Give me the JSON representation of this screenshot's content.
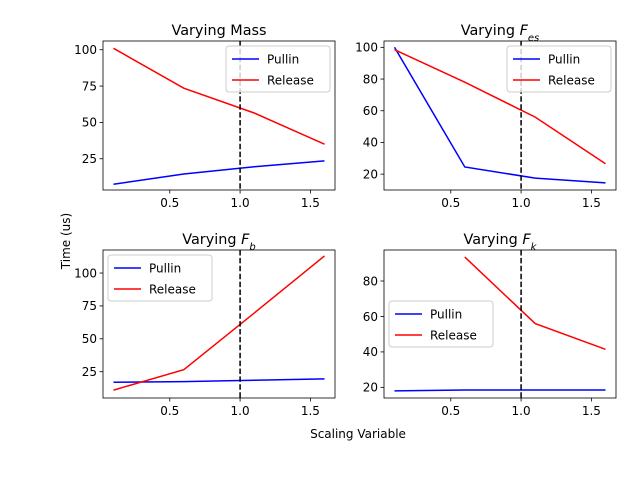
{
  "figure": {
    "xlabel": "Scaling Variable",
    "ylabel": "Time (us)"
  },
  "colors": {
    "pullin": "#0000ff",
    "release": "#ff0000",
    "reference": "#000000"
  },
  "chart_data": [
    {
      "type": "line",
      "title": "Varying Mass",
      "title_parts": [
        {
          "text": "Varying Mass",
          "italic": false
        }
      ],
      "xlim": [
        0.025,
        1.675
      ],
      "ylim": [
        3.5,
        106
      ],
      "xticks": [
        0.5,
        1.0,
        1.5
      ],
      "xtick_labels": [
        "0.5",
        "1.0",
        "1.5"
      ],
      "yticks": [
        25,
        50,
        75,
        100
      ],
      "ytick_labels": [
        "25",
        "50",
        "75",
        "100"
      ],
      "reference_x": 1.0,
      "legend": "top-right",
      "series": [
        {
          "name": "Pullin",
          "color": "#0000ff",
          "x": [
            0.1,
            0.6,
            1.1,
            1.6
          ],
          "y": [
            7.5,
            14.5,
            19.5,
            23.5
          ]
        },
        {
          "name": "Release",
          "color": "#ff0000",
          "x": [
            0.1,
            0.6,
            1.1,
            1.6
          ],
          "y": [
            101,
            73.5,
            56.5,
            35
          ]
        }
      ]
    },
    {
      "type": "line",
      "title": "Varying F_es",
      "title_parts": [
        {
          "text": "Varying ",
          "italic": false
        },
        {
          "text": "F",
          "italic": true
        },
        {
          "text": "es",
          "italic": true,
          "sub": true
        }
      ],
      "xlim": [
        0.025,
        1.675
      ],
      "ylim": [
        10,
        104
      ],
      "xticks": [
        0.5,
        1.0,
        1.5
      ],
      "xtick_labels": [
        "0.5",
        "1.0",
        "1.5"
      ],
      "yticks": [
        20,
        40,
        60,
        80,
        100
      ],
      "ytick_labels": [
        "20",
        "40",
        "60",
        "80",
        "100"
      ],
      "reference_x": 1.0,
      "legend": "top-right",
      "series": [
        {
          "name": "Pullin",
          "color": "#0000ff",
          "x": [
            0.1,
            0.6,
            1.1,
            1.6
          ],
          "y": [
            100,
            24.5,
            17.5,
            14.5
          ]
        },
        {
          "name": "Release",
          "color": "#ff0000",
          "x": [
            0.1,
            0.6,
            1.1,
            1.6
          ],
          "y": [
            98.5,
            78,
            56,
            26.5
          ]
        }
      ]
    },
    {
      "type": "line",
      "title": "Varying F_b",
      "title_parts": [
        {
          "text": "Varying ",
          "italic": false
        },
        {
          "text": "F",
          "italic": true
        },
        {
          "text": "b",
          "italic": true,
          "sub": true
        }
      ],
      "xlim": [
        0.025,
        1.675
      ],
      "ylim": [
        5,
        117.5
      ],
      "xticks": [
        0.5,
        1.0,
        1.5
      ],
      "xtick_labels": [
        "0.5",
        "1.0",
        "1.5"
      ],
      "yticks": [
        25,
        50,
        75,
        100
      ],
      "ytick_labels": [
        "25",
        "50",
        "75",
        "100"
      ],
      "reference_x": 1.0,
      "legend": "top-left",
      "series": [
        {
          "name": "Pullin",
          "color": "#0000ff",
          "x": [
            0.1,
            0.6,
            1.1,
            1.6
          ],
          "y": [
            17,
            17.5,
            18.5,
            19.5
          ]
        },
        {
          "name": "Release",
          "color": "#ff0000",
          "x": [
            0.1,
            0.6,
            1.1,
            1.6
          ],
          "y": [
            11,
            26.5,
            69.5,
            113
          ]
        }
      ]
    },
    {
      "type": "line",
      "title": "Varying F_k",
      "title_parts": [
        {
          "text": "Varying ",
          "italic": false
        },
        {
          "text": "F",
          "italic": true
        },
        {
          "text": "k",
          "italic": true,
          "sub": true
        }
      ],
      "xlim": [
        0.025,
        1.675
      ],
      "ylim": [
        14,
        97.5
      ],
      "xticks": [
        0.5,
        1.0,
        1.5
      ],
      "xtick_labels": [
        "0.5",
        "1.0",
        "1.5"
      ],
      "yticks": [
        20,
        40,
        60,
        80
      ],
      "ytick_labels": [
        "20",
        "40",
        "60",
        "80"
      ],
      "reference_x": 1.0,
      "legend": "center-left",
      "series": [
        {
          "name": "Pullin",
          "color": "#0000ff",
          "x": [
            0.1,
            0.6,
            1.1,
            1.6
          ],
          "y": [
            18,
            18.5,
            18.5,
            18.5
          ]
        },
        {
          "name": "Release",
          "color": "#ff0000",
          "x": [
            0.6,
            1.1,
            1.6
          ],
          "y": [
            93.5,
            56,
            41.5
          ]
        }
      ]
    }
  ]
}
